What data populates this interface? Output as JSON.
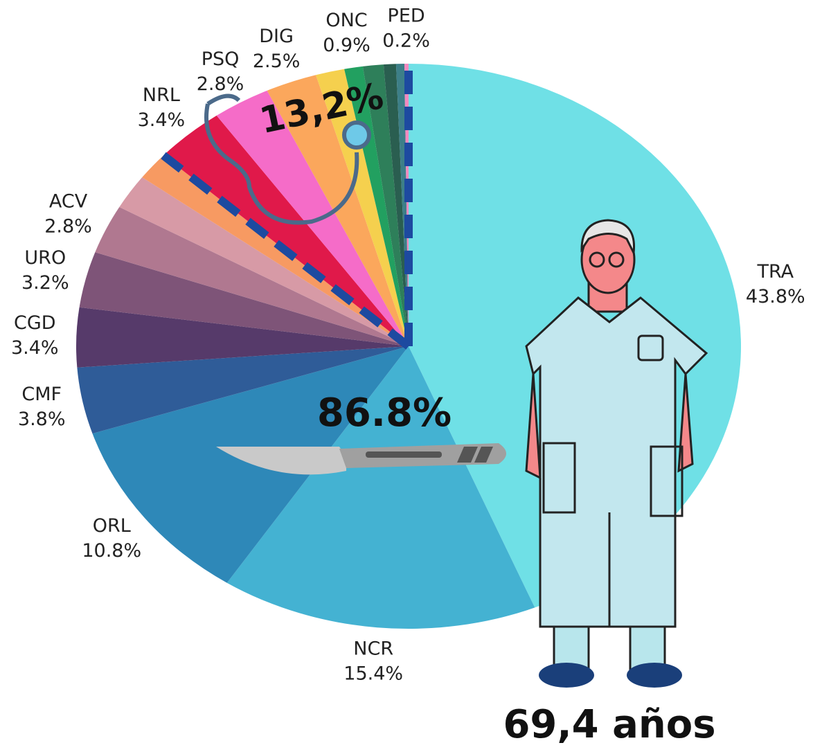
{
  "chart_data": {
    "type": "pie",
    "categories": [
      "TRA",
      "NCR",
      "ORL",
      "CMF",
      "CGD",
      "URO",
      "ACV",
      null,
      null,
      "NRL",
      "PSQ",
      "DIG",
      null,
      "ONC",
      null,
      null,
      null,
      "PED"
    ],
    "values": [
      43.8,
      15.4,
      10.8,
      3.8,
      3.4,
      3.2,
      2.8,
      2.0,
      1.6,
      3.4,
      2.8,
      2.5,
      1.4,
      0.9,
      1.0,
      0.6,
      0.4,
      0.2
    ],
    "value_labels": [
      "43.8%",
      "15.4%",
      "10.8%",
      "3.8%",
      "3.4%",
      "3.2%",
      "2.8%",
      null,
      null,
      "3.4%",
      "2.8%",
      "2.5%",
      null,
      "0.9%",
      null,
      null,
      null,
      "0.2%"
    ],
    "colors": [
      "#6fe0e6",
      "#44b2d2",
      "#2e88b8",
      "#2f5c98",
      "#563a6a",
      "#7e5478",
      "#b07890",
      "#d79aa6",
      "#f79a62",
      "#e0194a",
      "#f56cc8",
      "#fba75c",
      "#f5d04e",
      "#22a060",
      "#2e7f5a",
      "#2a5e50",
      "#3d7f88",
      "#f28ac0"
    ],
    "annotations": [
      "86.8%",
      "13,2%",
      "69,4 años"
    ]
  }
}
